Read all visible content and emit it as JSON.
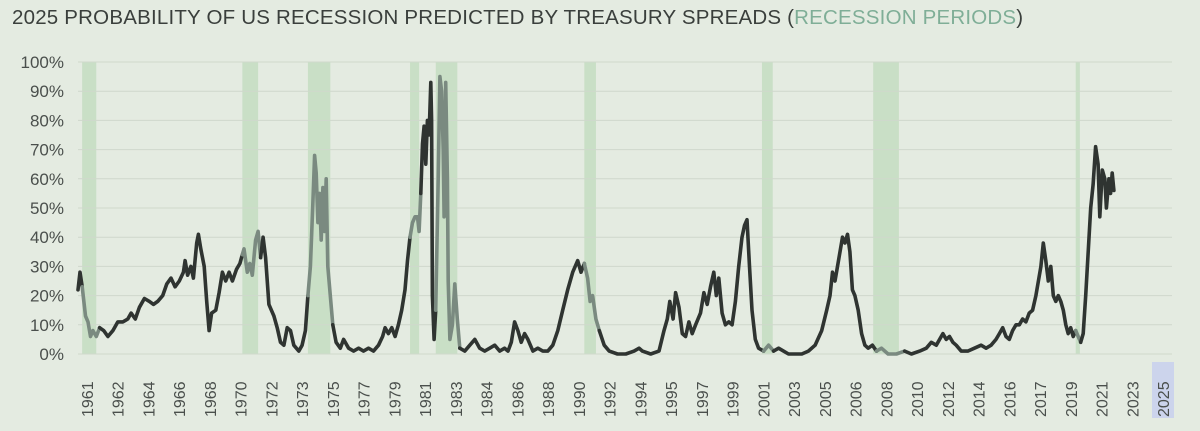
{
  "chart_data": {
    "type": "line",
    "title_prefix": "2025 PROBABILITY OF US RECESSION PREDICTED BY TREASURY SPREADS (",
    "title_highlight": "RECESSION PERIODS",
    "title_suffix": ")",
    "xlabel": "",
    "ylabel": "",
    "ylim": [
      0,
      100
    ],
    "xlim": [
      1960.0,
      2025.9
    ],
    "yticks": [
      "0%",
      "10%",
      "20%",
      "30%",
      "40%",
      "50%",
      "60%",
      "70%",
      "80%",
      "90%",
      "100%"
    ],
    "xticks": [
      "1961",
      "1962",
      "1964",
      "1966",
      "1968",
      "1970",
      "1972",
      "1973",
      "1975",
      "1977",
      "1979",
      "1981",
      "1983",
      "1984",
      "1986",
      "1988",
      "1990",
      "1992",
      "1994",
      "1995",
      "1997",
      "1999",
      "2001",
      "2003",
      "2005",
      "2006",
      "2008",
      "2010",
      "2012",
      "2014",
      "2016",
      "2017",
      "2019",
      "2021",
      "2023",
      "2025"
    ],
    "highlight_tick": "2025",
    "grid": true,
    "colors": {
      "line": "#2f3431",
      "line_in_recession": "#7a8a80",
      "recession_band": "#c9dfc6",
      "highlight_tick_bg": "#ccd4ec",
      "title_highlight": "#7fae97",
      "grid": "#cfd8cc"
    },
    "recession_periods": [
      [
        1960.25,
        1961.1
      ],
      [
        1969.9,
        1970.85
      ],
      [
        1973.85,
        1975.2
      ],
      [
        1980.0,
        1980.55
      ],
      [
        1981.55,
        1982.85
      ],
      [
        1990.5,
        1991.2
      ],
      [
        2001.2,
        2001.85
      ],
      [
        2007.9,
        2009.45
      ],
      [
        2020.1,
        2020.35
      ]
    ],
    "series": [
      {
        "values": [
          [
            1960.0,
            22
          ],
          [
            1960.12,
            28
          ],
          [
            1960.25,
            23
          ],
          [
            1960.45,
            13
          ],
          [
            1960.6,
            11
          ],
          [
            1960.75,
            6
          ],
          [
            1960.9,
            8
          ],
          [
            1961.1,
            6
          ],
          [
            1961.3,
            9
          ],
          [
            1961.55,
            8
          ],
          [
            1961.8,
            6
          ],
          [
            1962.1,
            8
          ],
          [
            1962.4,
            11
          ],
          [
            1962.7,
            11
          ],
          [
            1963.0,
            12
          ],
          [
            1963.2,
            14
          ],
          [
            1963.45,
            12
          ],
          [
            1963.7,
            16
          ],
          [
            1964.0,
            19
          ],
          [
            1964.3,
            18
          ],
          [
            1964.55,
            17
          ],
          [
            1964.8,
            18
          ],
          [
            1965.1,
            20
          ],
          [
            1965.35,
            24
          ],
          [
            1965.6,
            26
          ],
          [
            1965.85,
            23
          ],
          [
            1966.1,
            25
          ],
          [
            1966.35,
            28
          ],
          [
            1966.45,
            32
          ],
          [
            1966.6,
            27
          ],
          [
            1966.8,
            30
          ],
          [
            1966.95,
            26
          ],
          [
            1967.15,
            38
          ],
          [
            1967.25,
            41
          ],
          [
            1967.4,
            36
          ],
          [
            1967.6,
            30
          ],
          [
            1967.75,
            18
          ],
          [
            1967.9,
            8
          ],
          [
            1968.05,
            14
          ],
          [
            1968.3,
            15
          ],
          [
            1968.5,
            21
          ],
          [
            1968.7,
            28
          ],
          [
            1968.9,
            25
          ],
          [
            1969.1,
            28
          ],
          [
            1969.3,
            25
          ],
          [
            1969.55,
            29
          ],
          [
            1969.75,
            31
          ],
          [
            1969.9,
            34
          ],
          [
            1970.0,
            36
          ],
          [
            1970.2,
            28
          ],
          [
            1970.35,
            31
          ],
          [
            1970.5,
            27
          ],
          [
            1970.7,
            39
          ],
          [
            1970.85,
            42
          ],
          [
            1971.0,
            33
          ],
          [
            1971.15,
            40
          ],
          [
            1971.3,
            33
          ],
          [
            1971.5,
            17
          ],
          [
            1971.8,
            13
          ],
          [
            1972.0,
            9
          ],
          [
            1972.2,
            4
          ],
          [
            1972.4,
            3
          ],
          [
            1972.6,
            9
          ],
          [
            1972.8,
            8
          ],
          [
            1973.0,
            3
          ],
          [
            1973.3,
            1
          ],
          [
            1973.5,
            3
          ],
          [
            1973.7,
            8
          ],
          [
            1973.85,
            20
          ],
          [
            1974.0,
            30
          ],
          [
            1974.15,
            52
          ],
          [
            1974.25,
            68
          ],
          [
            1974.35,
            62
          ],
          [
            1974.45,
            45
          ],
          [
            1974.55,
            55
          ],
          [
            1974.65,
            39
          ],
          [
            1974.75,
            57
          ],
          [
            1974.85,
            42
          ],
          [
            1974.95,
            60
          ],
          [
            1975.05,
            30
          ],
          [
            1975.2,
            20
          ],
          [
            1975.35,
            10
          ],
          [
            1975.55,
            4
          ],
          [
            1975.8,
            2
          ],
          [
            1976.0,
            5
          ],
          [
            1976.3,
            2
          ],
          [
            1976.6,
            1
          ],
          [
            1976.9,
            2
          ],
          [
            1977.2,
            1
          ],
          [
            1977.5,
            2
          ],
          [
            1977.8,
            1
          ],
          [
            1978.1,
            3
          ],
          [
            1978.35,
            6
          ],
          [
            1978.5,
            9
          ],
          [
            1978.7,
            7
          ],
          [
            1978.9,
            9
          ],
          [
            1979.1,
            6
          ],
          [
            1979.3,
            10
          ],
          [
            1979.5,
            15
          ],
          [
            1979.7,
            22
          ],
          [
            1979.85,
            32
          ],
          [
            1980.0,
            40
          ],
          [
            1980.15,
            45
          ],
          [
            1980.3,
            47
          ],
          [
            1980.45,
            47
          ],
          [
            1980.55,
            42
          ],
          [
            1980.65,
            55
          ],
          [
            1980.75,
            72
          ],
          [
            1980.85,
            78
          ],
          [
            1980.95,
            65
          ],
          [
            1981.05,
            80
          ],
          [
            1981.15,
            75
          ],
          [
            1981.25,
            93
          ],
          [
            1981.3,
            80
          ],
          [
            1981.35,
            20
          ],
          [
            1981.45,
            5
          ],
          [
            1981.55,
            15
          ],
          [
            1981.7,
            60
          ],
          [
            1981.8,
            95
          ],
          [
            1981.9,
            90
          ],
          [
            1982.0,
            70
          ],
          [
            1982.05,
            47
          ],
          [
            1982.15,
            93
          ],
          [
            1982.25,
            60
          ],
          [
            1982.3,
            25
          ],
          [
            1982.4,
            5
          ],
          [
            1982.55,
            10
          ],
          [
            1982.7,
            24
          ],
          [
            1982.85,
            12
          ],
          [
            1983.0,
            2
          ],
          [
            1983.3,
            1
          ],
          [
            1983.6,
            3
          ],
          [
            1983.9,
            5
          ],
          [
            1984.2,
            2
          ],
          [
            1984.5,
            1
          ],
          [
            1984.8,
            2
          ],
          [
            1985.1,
            3
          ],
          [
            1985.4,
            1
          ],
          [
            1985.7,
            2
          ],
          [
            1985.9,
            1
          ],
          [
            1986.1,
            4
          ],
          [
            1986.3,
            11
          ],
          [
            1986.5,
            8
          ],
          [
            1986.7,
            4
          ],
          [
            1986.9,
            7
          ],
          [
            1987.1,
            5
          ],
          [
            1987.4,
            1
          ],
          [
            1987.7,
            2
          ],
          [
            1988.0,
            1
          ],
          [
            1988.3,
            1
          ],
          [
            1988.6,
            3
          ],
          [
            1988.9,
            8
          ],
          [
            1989.2,
            15
          ],
          [
            1989.5,
            22
          ],
          [
            1989.8,
            28
          ],
          [
            1990.1,
            32
          ],
          [
            1990.3,
            28
          ],
          [
            1990.5,
            31
          ],
          [
            1990.7,
            26
          ],
          [
            1990.85,
            18
          ],
          [
            1991.0,
            20
          ],
          [
            1991.2,
            12
          ],
          [
            1991.4,
            8
          ],
          [
            1991.7,
            3
          ],
          [
            1992.0,
            1
          ],
          [
            1992.5,
            0
          ],
          [
            1993.0,
            0
          ],
          [
            1993.5,
            1
          ],
          [
            1993.8,
            2
          ],
          [
            1994.0,
            1
          ],
          [
            1994.5,
            0
          ],
          [
            1995.0,
            1
          ],
          [
            1995.3,
            8
          ],
          [
            1995.5,
            12
          ],
          [
            1995.65,
            18
          ],
          [
            1995.85,
            12
          ],
          [
            1996.0,
            21
          ],
          [
            1996.2,
            16
          ],
          [
            1996.4,
            7
          ],
          [
            1996.6,
            6
          ],
          [
            1996.8,
            11
          ],
          [
            1997.0,
            7
          ],
          [
            1997.2,
            10
          ],
          [
            1997.5,
            14
          ],
          [
            1997.7,
            21
          ],
          [
            1997.9,
            17
          ],
          [
            1998.1,
            23
          ],
          [
            1998.3,
            28
          ],
          [
            1998.45,
            20
          ],
          [
            1998.6,
            26
          ],
          [
            1998.8,
            14
          ],
          [
            1999.0,
            10
          ],
          [
            1999.2,
            11
          ],
          [
            1999.4,
            10
          ],
          [
            1999.6,
            18
          ],
          [
            1999.8,
            30
          ],
          [
            2000.0,
            40
          ],
          [
            2000.15,
            44
          ],
          [
            2000.3,
            46
          ],
          [
            2000.45,
            30
          ],
          [
            2000.6,
            15
          ],
          [
            2000.8,
            5
          ],
          [
            2001.0,
            2
          ],
          [
            2001.3,
            1
          ],
          [
            2001.6,
            3
          ],
          [
            2001.9,
            1
          ],
          [
            2002.2,
            2
          ],
          [
            2002.5,
            1
          ],
          [
            2002.8,
            0
          ],
          [
            2003.2,
            0
          ],
          [
            2003.6,
            0
          ],
          [
            2004.0,
            1
          ],
          [
            2004.4,
            3
          ],
          [
            2004.8,
            8
          ],
          [
            2005.1,
            15
          ],
          [
            2005.3,
            20
          ],
          [
            2005.45,
            28
          ],
          [
            2005.6,
            25
          ],
          [
            2005.75,
            30
          ],
          [
            2005.9,
            35
          ],
          [
            2006.05,
            40
          ],
          [
            2006.2,
            38
          ],
          [
            2006.35,
            41
          ],
          [
            2006.5,
            35
          ],
          [
            2006.65,
            22
          ],
          [
            2006.8,
            20
          ],
          [
            2007.0,
            15
          ],
          [
            2007.2,
            7
          ],
          [
            2007.4,
            3
          ],
          [
            2007.6,
            2
          ],
          [
            2007.85,
            3
          ],
          [
            2008.1,
            1
          ],
          [
            2008.4,
            2
          ],
          [
            2008.8,
            0
          ],
          [
            2009.3,
            0
          ],
          [
            2009.8,
            1
          ],
          [
            2010.2,
            0
          ],
          [
            2010.7,
            1
          ],
          [
            2011.1,
            2
          ],
          [
            2011.4,
            4
          ],
          [
            2011.7,
            3
          ],
          [
            2011.9,
            5
          ],
          [
            2012.1,
            7
          ],
          [
            2012.3,
            5
          ],
          [
            2012.5,
            6
          ],
          [
            2012.7,
            4
          ],
          [
            2012.9,
            3
          ],
          [
            2013.2,
            1
          ],
          [
            2013.6,
            1
          ],
          [
            2014.0,
            2
          ],
          [
            2014.4,
            3
          ],
          [
            2014.7,
            2
          ],
          [
            2015.0,
            3
          ],
          [
            2015.3,
            5
          ],
          [
            2015.5,
            7
          ],
          [
            2015.7,
            9
          ],
          [
            2015.9,
            6
          ],
          [
            2016.1,
            5
          ],
          [
            2016.3,
            8
          ],
          [
            2016.5,
            10
          ],
          [
            2016.7,
            10
          ],
          [
            2016.9,
            12
          ],
          [
            2017.1,
            11
          ],
          [
            2017.3,
            14
          ],
          [
            2017.5,
            15
          ],
          [
            2017.7,
            20
          ],
          [
            2017.85,
            25
          ],
          [
            2018.0,
            30
          ],
          [
            2018.15,
            38
          ],
          [
            2018.3,
            32
          ],
          [
            2018.45,
            25
          ],
          [
            2018.6,
            30
          ],
          [
            2018.75,
            20
          ],
          [
            2018.9,
            18
          ],
          [
            2019.05,
            20
          ],
          [
            2019.2,
            18
          ],
          [
            2019.35,
            15
          ],
          [
            2019.5,
            10
          ],
          [
            2019.65,
            7
          ],
          [
            2019.8,
            9
          ],
          [
            2019.95,
            6
          ],
          [
            2020.1,
            8
          ],
          [
            2020.25,
            6
          ],
          [
            2020.4,
            4
          ],
          [
            2020.55,
            7
          ],
          [
            2020.7,
            20
          ],
          [
            2020.85,
            35
          ],
          [
            2021.0,
            50
          ],
          [
            2021.15,
            58
          ],
          [
            2021.3,
            71
          ],
          [
            2021.45,
            65
          ],
          [
            2021.55,
            47
          ],
          [
            2021.7,
            63
          ],
          [
            2021.85,
            60
          ],
          [
            2021.95,
            50
          ],
          [
            2022.1,
            60
          ],
          [
            2022.2,
            55
          ],
          [
            2022.3,
            62
          ],
          [
            2022.4,
            56
          ]
        ]
      }
    ]
  }
}
